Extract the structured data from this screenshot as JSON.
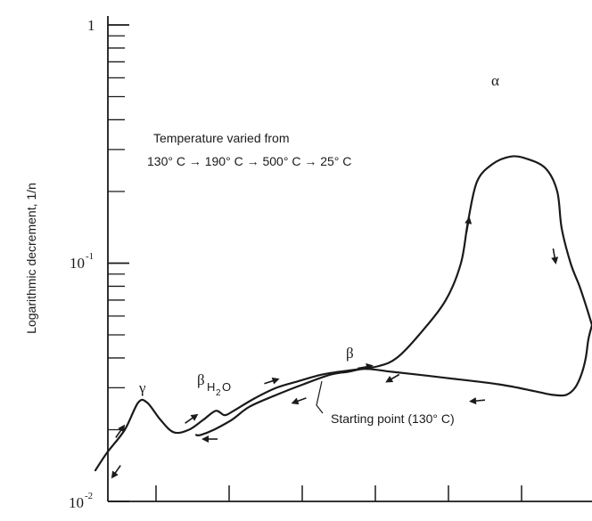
{
  "chart_data": {
    "type": "line",
    "scale": "log",
    "ylabel": "Logarithmic decrement, 1/n",
    "ylim": [
      0.01,
      1
    ],
    "y_ticks": [
      {
        "mantissa": "1",
        "exponent": ""
      },
      {
        "mantissa": "10",
        "exponent": "-1"
      },
      {
        "mantissa": "10",
        "exponent": "-2"
      }
    ],
    "x_tick_count": 6,
    "annotation": {
      "line1": "Temperature varied from",
      "line2": "130° C → 190° C → 500° C → 25° C"
    },
    "peaks": [
      {
        "label": "γ",
        "value": 0.026
      },
      {
        "label": "β",
        "sub": "H",
        "sub2": "2",
        "tail": "O",
        "value": 0.024
      },
      {
        "label": "β",
        "value": 0.036
      },
      {
        "label": "α",
        "value": 0.28
      }
    ],
    "starting_point": "Starting point (130° C)",
    "series": [
      {
        "direction": "increasing temperature",
        "y": [
          0.0135,
          0.016,
          0.02,
          0.026,
          0.026,
          0.022,
          0.0195,
          0.02,
          0.022,
          0.024,
          0.023,
          0.024,
          0.027,
          0.03,
          0.032,
          0.034,
          0.035,
          0.036,
          0.037,
          0.04,
          0.05,
          0.07,
          0.1,
          0.15,
          0.22,
          0.26,
          0.28,
          0.275,
          0.25,
          0.2,
          0.14,
          0.1,
          0.08,
          0.065,
          0.055
        ]
      },
      {
        "direction": "decreasing temperature",
        "y": [
          0.055,
          0.048,
          0.04,
          0.034,
          0.03,
          0.028,
          0.028,
          0.029,
          0.031,
          0.033,
          0.034,
          0.035,
          0.036,
          0.035,
          0.034,
          0.031,
          0.028,
          0.025,
          0.022,
          0.02,
          0.019,
          0.019
        ]
      }
    ]
  }
}
